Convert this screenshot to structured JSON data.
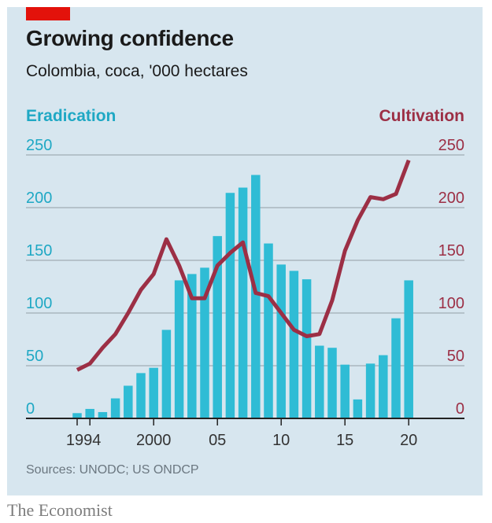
{
  "header": {
    "title": "Growing confidence",
    "subtitle": "Colombia, coca, '000 hectares"
  },
  "footer": {
    "source": "Sources: UNODC; US ONDCP",
    "brand": "The Economist"
  },
  "colors": {
    "background": "#d7e6ef",
    "accent_tag": "#e3120b",
    "eradication": "#2fbcd5",
    "cultivation": "#9c2f45",
    "gridline": "#aab6be",
    "axis": "#222222"
  },
  "chart_data": {
    "type": "bar+line",
    "title": "Growing confidence",
    "subtitle": "Colombia, coca, '000 hectares",
    "x": [
      1994,
      1995,
      1996,
      1997,
      1998,
      1999,
      2000,
      2001,
      2002,
      2003,
      2004,
      2005,
      2006,
      2007,
      2008,
      2009,
      2010,
      2011,
      2012,
      2013,
      2014,
      2015,
      2016,
      2017,
      2018,
      2019,
      2020
    ],
    "x_tick_values": [
      1994,
      2000,
      2005,
      2010,
      2015,
      2020
    ],
    "x_tick_labels": [
      "1994",
      "2000",
      "05",
      "10",
      "15",
      "20"
    ],
    "x_minor_tick_values": [
      1995
    ],
    "x_range": [
      1990.5,
      2024.5
    ],
    "series": [
      {
        "name": "Eradication",
        "type": "bar",
        "axis": "left",
        "values": [
          5,
          9,
          6,
          19,
          31,
          43,
          48,
          84,
          131,
          137,
          143,
          173,
          214,
          219,
          231,
          166,
          146,
          140,
          132,
          69,
          67,
          51,
          18,
          52,
          60,
          95,
          131
        ]
      },
      {
        "name": "Cultivation",
        "type": "line",
        "axis": "right",
        "values": [
          46,
          52,
          67,
          80,
          100,
          122,
          137,
          170,
          145,
          114,
          114,
          145,
          157,
          167,
          119,
          116,
          100,
          84,
          78,
          80,
          112,
          159,
          188,
          210,
          208,
          213,
          245
        ]
      }
    ],
    "y_left": {
      "label": "Eradication",
      "range": [
        0,
        250
      ],
      "ticks": [
        0,
        50,
        100,
        150,
        200,
        250
      ]
    },
    "y_right": {
      "label": "Cultivation",
      "range": [
        0,
        250
      ],
      "ticks": [
        0,
        50,
        100,
        150,
        200,
        250
      ]
    },
    "grid": true,
    "legend": "top, left label for bars and right label for line",
    "source": "Sources: UNODC; US ONDCP"
  }
}
